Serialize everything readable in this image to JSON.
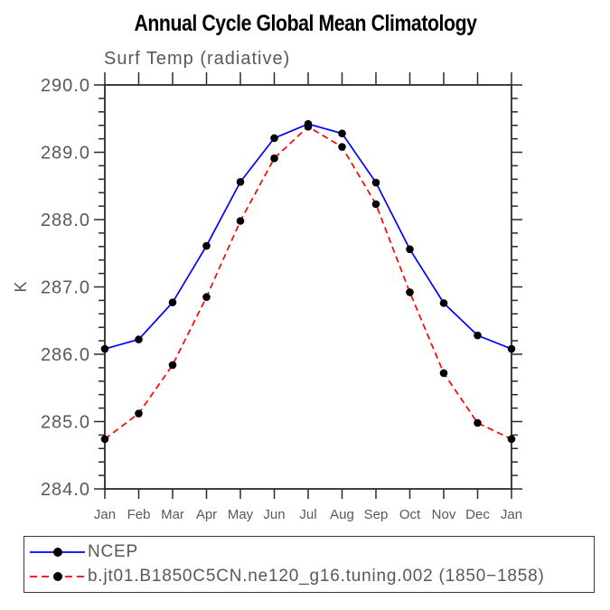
{
  "chart_data": {
    "type": "line",
    "title": "Annual Cycle Global Mean Climatology",
    "subtitle": "Surf Temp (radiative)",
    "xlabel": "",
    "ylabel": "K",
    "categories": [
      "Jan",
      "Feb",
      "Mar",
      "Apr",
      "May",
      "Jun",
      "Jul",
      "Aug",
      "Sep",
      "Oct",
      "Nov",
      "Dec",
      "Jan"
    ],
    "ylim": [
      284.0,
      290.0
    ],
    "ytick_major_step": 1.0,
    "ytick_minor_step": 0.2,
    "ytick_labels": [
      "284.0",
      "285.0",
      "286.0",
      "287.0",
      "288.0",
      "289.0",
      "290.0"
    ],
    "grid": false,
    "legend_position": "bottom-left-boxed",
    "axis_color": "#2a2a2a",
    "label_color": "#585858",
    "marker_color": "#000000",
    "series": [
      {
        "name": "NCEP",
        "color": "#0000ff",
        "line_style": "solid",
        "marker": "filled-circle",
        "values": [
          286.08,
          286.22,
          286.77,
          287.61,
          288.56,
          289.21,
          289.42,
          289.28,
          288.55,
          287.56,
          286.76,
          286.28,
          286.08
        ]
      },
      {
        "name": "b.jt01.B1850C5CN.ne120_g16.tuning.002 (1850−1858)",
        "color": "#ff0000",
        "line_style": "dashed",
        "marker": "filled-circle",
        "values": [
          284.74,
          285.12,
          285.84,
          286.85,
          287.98,
          288.91,
          289.38,
          289.08,
          288.23,
          286.92,
          285.72,
          284.98,
          284.74
        ]
      }
    ]
  }
}
